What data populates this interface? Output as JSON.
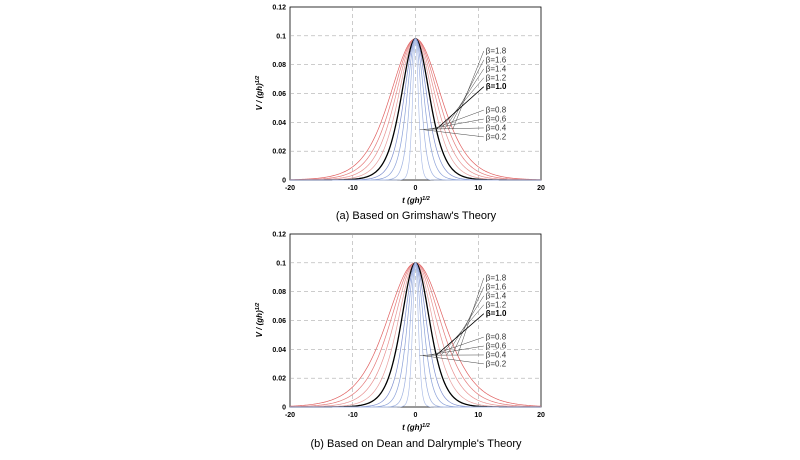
{
  "chart_data": [
    {
      "type": "line",
      "title": "",
      "caption": "(a) Based on Grimshaw's Theory",
      "xlabel_main": "t (gh)",
      "xlabel_sup": "1/2",
      "ylabel_main": "V / (gh)",
      "ylabel_sup": "1/2",
      "xlim": [
        -20,
        20
      ],
      "ylim": [
        0,
        0.12
      ],
      "xticks": [
        "-20",
        "-10",
        "0",
        "10",
        "20"
      ],
      "yticks": [
        "0",
        "0.02",
        "0.04",
        "0.06",
        "0.08",
        "0.1",
        "0.12"
      ],
      "grid": true,
      "peak": 0.098,
      "series": [
        {
          "name": "β=1.8",
          "beta": 1.8,
          "half_width": 5.4,
          "color": "#e06060",
          "bold": false,
          "group": "upper"
        },
        {
          "name": "β=1.6",
          "beta": 1.6,
          "half_width": 4.8,
          "color": "#e47878",
          "bold": false,
          "group": "upper"
        },
        {
          "name": "β=1.4",
          "beta": 1.4,
          "half_width": 4.2,
          "color": "#e89090",
          "bold": false,
          "group": "upper"
        },
        {
          "name": "β=1.2",
          "beta": 1.2,
          "half_width": 3.6,
          "color": "#e8a0a0",
          "bold": false,
          "group": "upper"
        },
        {
          "name": "β=1.0",
          "beta": 1.0,
          "half_width": 3.0,
          "color": "#000000",
          "bold": true,
          "group": "upper"
        },
        {
          "name": "β=0.8",
          "beta": 0.8,
          "half_width": 2.4,
          "color": "#7f8fcf",
          "bold": false,
          "group": "lower"
        },
        {
          "name": "β=0.6",
          "beta": 0.6,
          "half_width": 1.8,
          "color": "#8aa0d8",
          "bold": false,
          "group": "lower"
        },
        {
          "name": "β=0.4",
          "beta": 0.4,
          "half_width": 1.2,
          "color": "#9db0e0",
          "bold": false,
          "group": "lower"
        },
        {
          "name": "β=0.2",
          "beta": 0.2,
          "half_width": 0.6,
          "color": "#b0c0e8",
          "bold": false,
          "group": "lower"
        }
      ]
    },
    {
      "type": "line",
      "title": "",
      "caption": "(b) Based on Dean and Dalrymple's Theory",
      "xlabel_main": "t (gh)",
      "xlabel_sup": "1/2",
      "ylabel_main": "V / (gh)",
      "ylabel_sup": "1/2",
      "xlim": [
        -20,
        20
      ],
      "ylim": [
        0,
        0.12
      ],
      "xticks": [
        "-20",
        "-10",
        "0",
        "10",
        "20"
      ],
      "yticks": [
        "0",
        "0.02",
        "0.04",
        "0.06",
        "0.08",
        "0.1",
        "0.12"
      ],
      "grid": true,
      "peak": 0.1,
      "series": [
        {
          "name": "β=1.8",
          "beta": 1.8,
          "half_width": 6.1,
          "color": "#e06060",
          "bold": false,
          "group": "upper"
        },
        {
          "name": "β=1.6",
          "beta": 1.6,
          "half_width": 5.3,
          "color": "#e47878",
          "bold": false,
          "group": "upper"
        },
        {
          "name": "β=1.4",
          "beta": 1.4,
          "half_width": 4.5,
          "color": "#e89090",
          "bold": false,
          "group": "upper"
        },
        {
          "name": "β=1.2",
          "beta": 1.2,
          "half_width": 3.7,
          "color": "#e8a0a0",
          "bold": false,
          "group": "upper"
        },
        {
          "name": "β=1.0",
          "beta": 1.0,
          "half_width": 3.0,
          "color": "#000000",
          "bold": true,
          "group": "upper"
        },
        {
          "name": "β=0.8",
          "beta": 0.8,
          "half_width": 2.3,
          "color": "#7f8fcf",
          "bold": false,
          "group": "lower"
        },
        {
          "name": "β=0.6",
          "beta": 0.6,
          "half_width": 1.7,
          "color": "#8aa0d8",
          "bold": false,
          "group": "lower"
        },
        {
          "name": "β=0.4",
          "beta": 0.4,
          "half_width": 1.1,
          "color": "#9db0e0",
          "bold": false,
          "group": "lower"
        },
        {
          "name": "β=0.2",
          "beta": 0.2,
          "half_width": 0.6,
          "color": "#b0c0e8",
          "bold": false,
          "group": "lower"
        }
      ]
    }
  ]
}
